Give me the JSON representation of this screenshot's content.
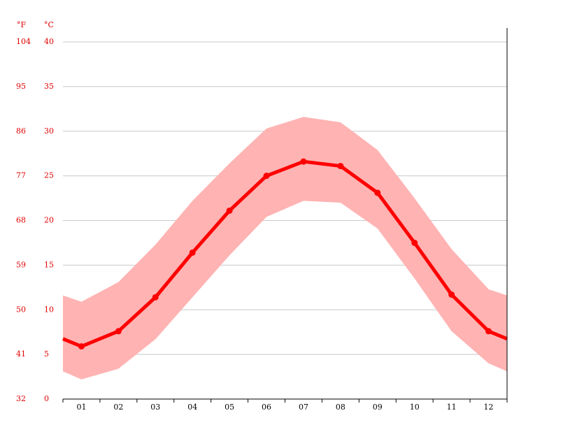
{
  "chart_data": {
    "type": "line",
    "categories": [
      "01",
      "02",
      "03",
      "04",
      "05",
      "06",
      "07",
      "08",
      "09",
      "10",
      "11",
      "12"
    ],
    "y_unit": "°C",
    "y2_unit": "°F",
    "ylim": [
      0,
      40
    ],
    "yticks": [
      0,
      5,
      10,
      15,
      20,
      25,
      30,
      35,
      40
    ],
    "y2lim": [
      32,
      104
    ],
    "y2ticks": [
      32,
      41,
      50,
      59,
      68,
      77,
      86,
      95,
      104
    ],
    "grid": true,
    "series": [
      {
        "color": "#ff0000",
        "values": [
          5.9,
          7.6,
          11.4,
          16.4,
          21.1,
          25.0,
          26.6,
          26.1,
          23.1,
          17.5,
          11.7,
          7.6
        ]
      }
    ],
    "band": {
      "color": "#ffb3b3",
      "high": [
        10.9,
        13.1,
        17.3,
        22.2,
        26.4,
        30.3,
        31.6,
        31.0,
        27.9,
        22.5,
        16.8,
        12.3
      ],
      "low": [
        2.2,
        3.4,
        6.7,
        11.4,
        16.1,
        20.4,
        22.2,
        22.0,
        19.1,
        13.5,
        7.6,
        4.0
      ]
    }
  }
}
